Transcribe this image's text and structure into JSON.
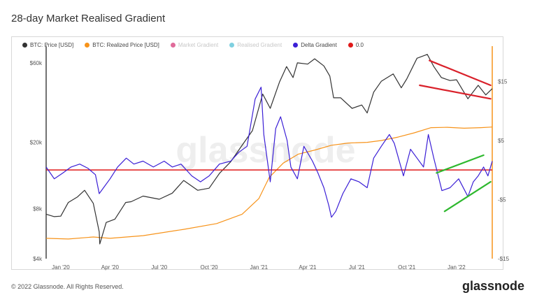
{
  "title": "28-day Market Realised Gradient",
  "copyright": "© 2022 Glassnode. All Rights Reserved.",
  "brand": "glassnode",
  "watermark": "glassnode",
  "legend": [
    {
      "label": "BTC: Price [USD]",
      "color": "#333333",
      "muted": false
    },
    {
      "label": "BTC: Realized Price [USD]",
      "color": "#f7931a",
      "muted": false
    },
    {
      "label": "Market Gradient",
      "color": "#e06b9a",
      "muted": true
    },
    {
      "label": "Realised Gradient",
      "color": "#7fd0e0",
      "muted": true
    },
    {
      "label": "Delta Gradient",
      "color": "#3b1fd6",
      "muted": false
    },
    {
      "label": "0.0",
      "color": "#e01919",
      "muted": false
    }
  ],
  "chart_data": {
    "type": "line",
    "x_axis": {
      "range": [
        "2019-12-05",
        "2022-03-08"
      ],
      "tick_labels": [
        "Jan '20",
        "Apr '20",
        "Jul '20",
        "Oct '20",
        "Jan '21",
        "Apr '21",
        "Jul '21",
        "Oct '21",
        "Jan '22"
      ]
    },
    "y_left": {
      "scale": "log",
      "range": [
        4000,
        70000
      ],
      "tick_labels": [
        "$4k",
        "$8k",
        "$20k",
        "$60k"
      ],
      "tick_values": [
        4000,
        8000,
        20000,
        60000
      ]
    },
    "y_right": {
      "range": [
        -15,
        20
      ],
      "tick_labels": [
        "-$15",
        "-$5",
        "$5",
        "$15"
      ],
      "tick_values": [
        -15,
        -5,
        5,
        15
      ]
    },
    "series": [
      {
        "name": "BTC: Price [USD]",
        "axis": "left",
        "color": "#333333",
        "x": [
          "2019-12-05",
          "2019-12-20",
          "2020-01-01",
          "2020-01-15",
          "2020-02-01",
          "2020-02-14",
          "2020-03-01",
          "2020-03-12",
          "2020-03-13",
          "2020-03-25",
          "2020-04-10",
          "2020-04-30",
          "2020-05-10",
          "2020-06-01",
          "2020-07-01",
          "2020-07-25",
          "2020-08-15",
          "2020-09-10",
          "2020-10-01",
          "2020-10-20",
          "2020-11-10",
          "2020-11-30",
          "2020-12-20",
          "2021-01-08",
          "2021-01-22",
          "2021-02-08",
          "2021-02-21",
          "2021-03-05",
          "2021-03-13",
          "2021-04-01",
          "2021-04-14",
          "2021-05-01",
          "2021-05-12",
          "2021-05-19",
          "2021-06-01",
          "2021-06-22",
          "2021-07-10",
          "2021-07-20",
          "2021-08-01",
          "2021-08-15",
          "2021-09-06",
          "2021-09-21",
          "2021-10-01",
          "2021-10-20",
          "2021-11-08",
          "2021-11-20",
          "2021-12-04",
          "2021-12-20",
          "2022-01-01",
          "2022-01-22",
          "2022-02-10",
          "2022-02-24",
          "2022-03-08"
        ],
        "y": [
          7400,
          7150,
          7200,
          8700,
          9400,
          10300,
          8600,
          5800,
          4900,
          6600,
          6900,
          8700,
          8800,
          9500,
          9100,
          9900,
          11800,
          10300,
          10600,
          13000,
          15300,
          19000,
          23500,
          39000,
          32000,
          46000,
          57000,
          49000,
          60000,
          59000,
          63500,
          57500,
          50000,
          37000,
          37000,
          32000,
          33500,
          30000,
          40000,
          46500,
          51500,
          42500,
          48000,
          64000,
          67500,
          57000,
          49000,
          47000,
          47500,
          36500,
          44000,
          38500,
          42000
        ]
      },
      {
        "name": "BTC: Realized Price [USD]",
        "axis": "left",
        "color": "#f7931a",
        "x": [
          "2019-12-05",
          "2020-01-15",
          "2020-03-01",
          "2020-04-01",
          "2020-06-01",
          "2020-08-15",
          "2020-10-15",
          "2020-12-01",
          "2021-01-01",
          "2021-01-20",
          "2021-02-15",
          "2021-03-15",
          "2021-04-15",
          "2021-05-15",
          "2021-06-15",
          "2021-07-20",
          "2021-08-15",
          "2021-09-15",
          "2021-10-15",
          "2021-11-15",
          "2021-12-15",
          "2022-01-15",
          "2022-02-15",
          "2022-03-08"
        ],
        "y": [
          5300,
          5250,
          5400,
          5300,
          5500,
          6000,
          6500,
          7400,
          9200,
          12300,
          15000,
          17000,
          18000,
          19200,
          19800,
          20000,
          20500,
          21500,
          22800,
          24500,
          24600,
          24300,
          24500,
          24700
        ]
      },
      {
        "name": "Delta Gradient",
        "axis": "right",
        "color": "#3b1fd6",
        "x": [
          "2019-12-05",
          "2019-12-20",
          "2020-01-05",
          "2020-01-20",
          "2020-02-05",
          "2020-02-20",
          "2020-03-05",
          "2020-03-12",
          "2020-03-20",
          "2020-04-01",
          "2020-04-15",
          "2020-05-01",
          "2020-05-15",
          "2020-06-01",
          "2020-06-20",
          "2020-07-10",
          "2020-07-25",
          "2020-08-10",
          "2020-08-30",
          "2020-09-15",
          "2020-10-01",
          "2020-10-20",
          "2020-11-10",
          "2020-11-25",
          "2020-12-10",
          "2020-12-25",
          "2021-01-05",
          "2021-01-10",
          "2021-01-22",
          "2021-02-01",
          "2021-02-10",
          "2021-02-22",
          "2021-03-01",
          "2021-03-13",
          "2021-03-25",
          "2021-04-10",
          "2021-04-20",
          "2021-05-01",
          "2021-05-10",
          "2021-05-15",
          "2021-05-23",
          "2021-06-05",
          "2021-06-20",
          "2021-07-05",
          "2021-07-20",
          "2021-08-01",
          "2021-08-15",
          "2021-08-30",
          "2021-09-08",
          "2021-09-25",
          "2021-10-08",
          "2021-10-20",
          "2021-11-01",
          "2021-11-10",
          "2021-11-20",
          "2021-12-01",
          "2021-12-05",
          "2021-12-20",
          "2022-01-05",
          "2022-01-22",
          "2022-02-01",
          "2022-02-10",
          "2022-02-20",
          "2022-02-28",
          "2022-03-08"
        ],
        "y": [
          0.5,
          -1.5,
          -0.5,
          0.5,
          1.0,
          0.3,
          -0.8,
          -4.0,
          -3.0,
          -1.5,
          0.5,
          2.0,
          1.0,
          1.5,
          0.5,
          1.5,
          0.5,
          1.0,
          -1.0,
          -2.0,
          -1.0,
          1.0,
          1.5,
          3.0,
          4.0,
          12.0,
          14.0,
          6.0,
          -2.0,
          7.0,
          9.0,
          5.0,
          0.5,
          -1.5,
          4.0,
          1.5,
          -0.5,
          -3.0,
          -6.0,
          -8.0,
          -7.0,
          -4.0,
          -1.5,
          -2.0,
          -3.0,
          2.0,
          4.0,
          6.0,
          4.5,
          -1.0,
          3.5,
          2.0,
          0.5,
          6.0,
          2.0,
          -2.0,
          -3.5,
          -3.0,
          -1.5,
          -4.5,
          -2.0,
          -1.0,
          0.5,
          -1.0,
          1.5
        ]
      },
      {
        "name": "0.0",
        "axis": "right",
        "color": "#e01919",
        "x": [
          "2019-12-05",
          "2022-03-08"
        ],
        "y": [
          0,
          0
        ]
      }
    ],
    "annotations": [
      {
        "type": "trendline",
        "color": "#d9202a",
        "axis": "left",
        "x": [
          "2021-11-12",
          "2022-03-05"
        ],
        "y": [
          62000,
          44000
        ]
      },
      {
        "type": "trendline",
        "color": "#d9202a",
        "axis": "left",
        "x": [
          "2021-10-25",
          "2022-03-05"
        ],
        "y": [
          44000,
          36500
        ]
      },
      {
        "type": "trendline",
        "color": "#2eb82e",
        "axis": "right",
        "x": [
          "2021-11-25",
          "2022-02-20"
        ],
        "y": [
          -0.5,
          2.5
        ]
      },
      {
        "type": "trendline",
        "color": "#2eb82e",
        "axis": "right",
        "x": [
          "2021-12-10",
          "2022-03-05"
        ],
        "y": [
          -7.0,
          -2.0
        ]
      }
    ],
    "grid": false,
    "legend_position": "top-left"
  }
}
